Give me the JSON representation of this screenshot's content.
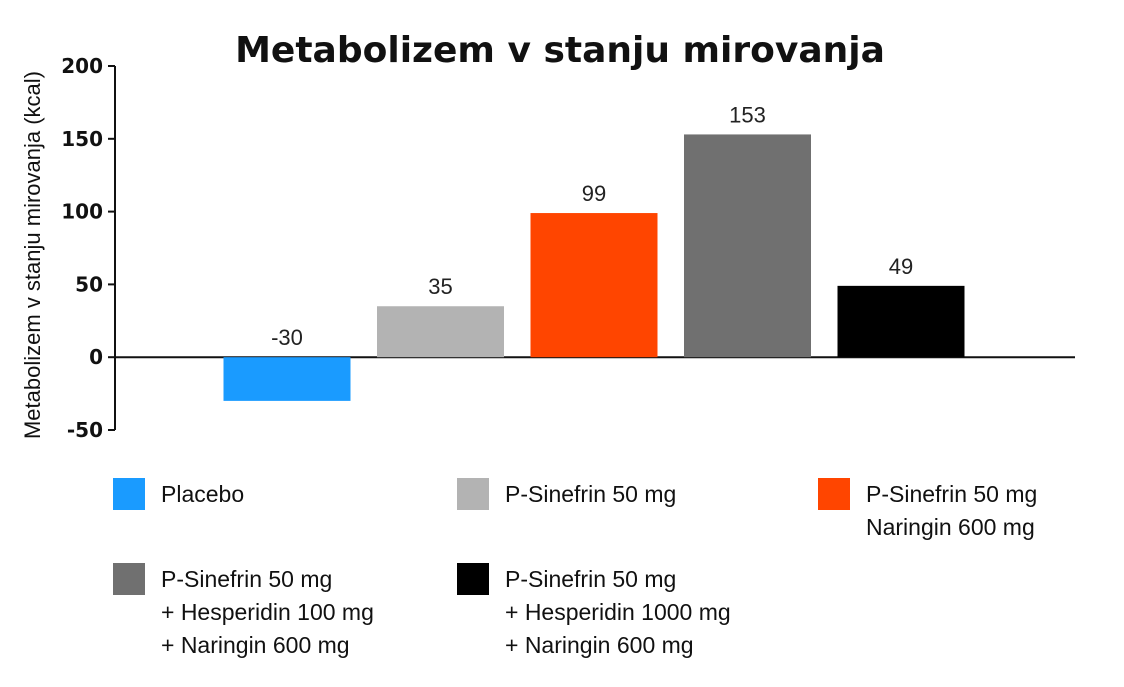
{
  "chart_data": {
    "type": "bar",
    "title": "Metabolizem v stanju mirovanja",
    "ylabel": "Metabolizem v stanju mirovanja (kcal)",
    "xlabel": "",
    "ylim": [
      -50,
      200
    ],
    "yticks": [
      "200",
      "150",
      "100",
      "50",
      "0",
      "-50"
    ],
    "ytick_values": [
      200,
      150,
      100,
      50,
      0,
      -50
    ],
    "categories": [
      "Placebo",
      "P-Sinefrin 50 mg",
      "P-Sinefrin 50 mg Naringin 600 mg",
      "P-Sinefrin 50 mg + Hesperidin 100 mg + Naringin 600 mg",
      "P-Sinefrin 50 mg + Hesperidin 1000 mg + Naringin 600 mg"
    ],
    "values": [
      -30,
      35,
      99,
      153,
      49
    ],
    "data_labels": [
      "-30",
      "35",
      "99",
      "153",
      "49"
    ],
    "colors": [
      "#1a9bff",
      "#b3b3b3",
      "#ff4500",
      "#707070",
      "#000000"
    ],
    "grid": false,
    "legend_position": "bottom"
  },
  "legend": {
    "items": [
      {
        "lines": [
          "Placebo"
        ],
        "color": "#1a9bff"
      },
      {
        "lines": [
          "P-Sinefrin 50 mg"
        ],
        "color": "#b3b3b3"
      },
      {
        "lines": [
          "P-Sinefrin 50 mg",
          "Naringin 600 mg"
        ],
        "color": "#ff4500"
      },
      {
        "lines": [
          "P-Sinefrin 50 mg",
          "+ Hesperidin 100 mg",
          "+ Naringin 600 mg"
        ],
        "color": "#707070"
      },
      {
        "lines": [
          "P-Sinefrin 50 mg",
          "+ Hesperidin 1000 mg",
          "+ Naringin 600 mg"
        ],
        "color": "#000000"
      }
    ]
  }
}
